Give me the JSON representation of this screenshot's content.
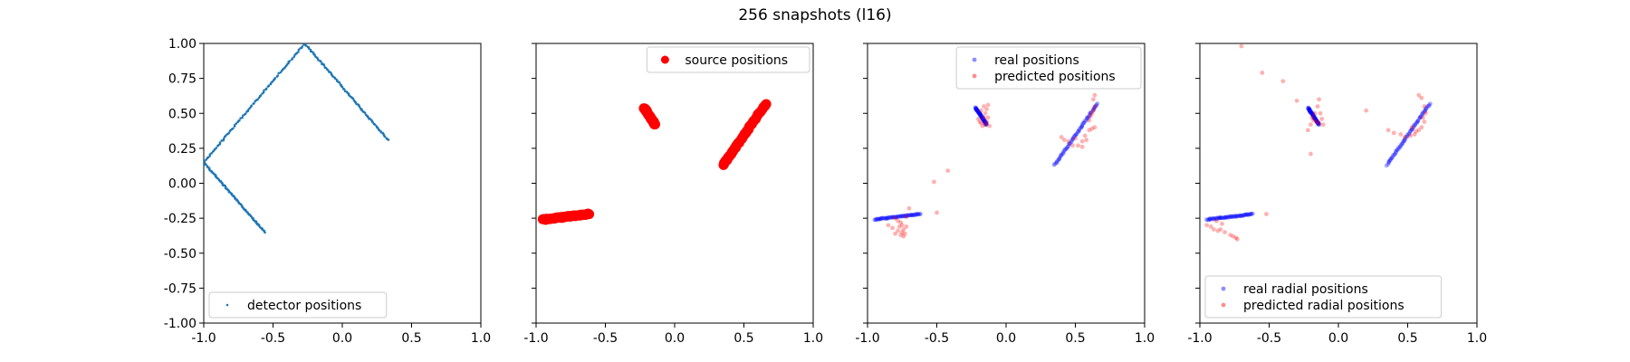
{
  "figure": {
    "title": "256 snapshots (l16)"
  },
  "colors": {
    "detector": "#1f77b4",
    "red": "#ff0000",
    "blue": "#0000ff",
    "axis": "#000000",
    "legend_border": "#cccccc"
  },
  "chart_data": [
    {
      "type": "scatter",
      "title": "",
      "xlabel": "",
      "ylabel": "",
      "xlim": [
        -1.0,
        1.0
      ],
      "ylim": [
        -1.0,
        1.0
      ],
      "xticks": [
        "-1.0",
        "-0.5",
        "0.0",
        "0.5",
        "1.0"
      ],
      "yticks": [
        "1.00",
        "0.75",
        "0.50",
        "0.25",
        "0.00",
        "-0.25",
        "-0.50",
        "-0.75",
        "-1.00"
      ],
      "legend_position": "lower-left",
      "grid": false,
      "series": [
        {
          "name": "detector positions",
          "style": "small-dot",
          "color": "#1f77b4",
          "segments": [
            {
              "from": [
                -0.56,
                -0.35
              ],
              "to": [
                -1.0,
                0.15
              ]
            },
            {
              "from": [
                -1.0,
                0.15
              ],
              "to": [
                -0.27,
                1.0
              ]
            },
            {
              "from": [
                -0.27,
                1.0
              ],
              "to": [
                0.33,
                0.31
              ]
            }
          ]
        }
      ]
    },
    {
      "type": "scatter",
      "title": "",
      "xlabel": "",
      "ylabel": "",
      "xlim": [
        -1.0,
        1.0
      ],
      "ylim": [
        -1.0,
        1.0
      ],
      "xticks": [
        "-1.0",
        "-0.5",
        "0.0",
        "0.5",
        "1.0"
      ],
      "yticks": [],
      "legend_position": "upper-right",
      "grid": false,
      "series": [
        {
          "name": "source positions",
          "style": "large-dot",
          "color": "#ff0000",
          "segments": [
            {
              "from": [
                -0.95,
                -0.26
              ],
              "to": [
                -0.62,
                -0.22
              ]
            },
            {
              "from": [
                -0.22,
                0.54
              ],
              "to": [
                -0.14,
                0.42
              ]
            },
            {
              "from": [
                0.35,
                0.13
              ],
              "to": [
                0.66,
                0.57
              ]
            }
          ]
        }
      ]
    },
    {
      "type": "scatter",
      "title": "",
      "xlabel": "",
      "ylabel": "",
      "xlim": [
        -1.0,
        1.0
      ],
      "ylim": [
        -1.0,
        1.0
      ],
      "xticks": [
        "-1.0",
        "-0.5",
        "0.0",
        "0.5",
        "1.0"
      ],
      "yticks": [],
      "legend_position": "upper-right",
      "grid": false,
      "series": [
        {
          "name": "real positions",
          "style": "faint-dot",
          "color": "#0000ff",
          "segments": [
            {
              "from": [
                -0.95,
                -0.26
              ],
              "to": [
                -0.62,
                -0.22
              ]
            },
            {
              "from": [
                -0.22,
                0.54
              ],
              "to": [
                -0.14,
                0.42
              ]
            },
            {
              "from": [
                0.35,
                0.13
              ],
              "to": [
                0.66,
                0.57
              ]
            }
          ]
        },
        {
          "name": "predicted positions",
          "style": "faint-dot",
          "color": "#ff0000",
          "points": [
            [
              -0.8,
              -0.25
            ],
            [
              -0.78,
              -0.27
            ],
            [
              -0.76,
              -0.28
            ],
            [
              -0.75,
              -0.3
            ],
            [
              -0.74,
              -0.33
            ],
            [
              -0.75,
              -0.35
            ],
            [
              -0.73,
              -0.36
            ],
            [
              -0.74,
              -0.38
            ],
            [
              -0.76,
              -0.37
            ],
            [
              -0.8,
              -0.36
            ],
            [
              -0.85,
              -0.3
            ],
            [
              -0.82,
              -0.32
            ],
            [
              -0.78,
              -0.34
            ],
            [
              -0.72,
              -0.24
            ],
            [
              -0.7,
              -0.18
            ],
            [
              -0.5,
              -0.21
            ],
            [
              -0.52,
              0.01
            ],
            [
              -0.42,
              0.09
            ],
            [
              -0.72,
              -0.31
            ],
            [
              -0.77,
              -0.31
            ],
            [
              -0.2,
              0.46
            ],
            [
              -0.18,
              0.43
            ],
            [
              -0.17,
              0.41
            ],
            [
              -0.15,
              0.42
            ],
            [
              -0.14,
              0.44
            ],
            [
              -0.13,
              0.47
            ],
            [
              -0.15,
              0.5
            ],
            [
              -0.14,
              0.53
            ],
            [
              -0.13,
              0.56
            ],
            [
              -0.16,
              0.55
            ],
            [
              -0.19,
              0.44
            ],
            [
              -0.12,
              0.41
            ],
            [
              -0.16,
              0.47
            ],
            [
              -0.18,
              0.52
            ],
            [
              0.4,
              0.33
            ],
            [
              0.42,
              0.31
            ],
            [
              0.48,
              0.27
            ],
            [
              0.52,
              0.27
            ],
            [
              0.55,
              0.3
            ],
            [
              0.57,
              0.34
            ],
            [
              0.6,
              0.38
            ],
            [
              0.62,
              0.39
            ],
            [
              0.64,
              0.4
            ],
            [
              0.6,
              0.45
            ],
            [
              0.62,
              0.5
            ],
            [
              0.64,
              0.55
            ],
            [
              0.63,
              0.6
            ],
            [
              0.64,
              0.63
            ],
            [
              0.55,
              0.26
            ],
            [
              0.58,
              0.31
            ],
            [
              0.5,
              0.32
            ],
            [
              0.45,
              0.3
            ],
            [
              0.61,
              0.48
            ],
            [
              0.63,
              0.52
            ]
          ]
        }
      ]
    },
    {
      "type": "scatter",
      "title": "",
      "xlabel": "",
      "ylabel": "",
      "xlim": [
        -1.0,
        1.0
      ],
      "ylim": [
        -1.0,
        1.0
      ],
      "xticks": [
        "-1.0",
        "-0.5",
        "0.0",
        "0.5",
        "1.0"
      ],
      "yticks": [],
      "legend_position": "lower-left",
      "grid": false,
      "series": [
        {
          "name": "real radial positions",
          "style": "faint-dot",
          "color": "#0000ff",
          "segments": [
            {
              "from": [
                -0.95,
                -0.26
              ],
              "to": [
                -0.62,
                -0.22
              ]
            },
            {
              "from": [
                -0.22,
                0.54
              ],
              "to": [
                -0.14,
                0.42
              ]
            },
            {
              "from": [
                0.35,
                0.13
              ],
              "to": [
                0.66,
                0.57
              ]
            }
          ]
        },
        {
          "name": "predicted radial positions",
          "style": "faint-dot",
          "color": "#ff0000",
          "points": [
            [
              -0.7,
              0.98
            ],
            [
              -0.55,
              0.79
            ],
            [
              -0.4,
              0.73
            ],
            [
              -0.3,
              0.59
            ],
            [
              -0.52,
              -0.22
            ],
            [
              0.2,
              0.52
            ],
            [
              -0.95,
              -0.3
            ],
            [
              -0.92,
              -0.31
            ],
            [
              -0.9,
              -0.33
            ],
            [
              -0.87,
              -0.34
            ],
            [
              -0.85,
              -0.33
            ],
            [
              -0.82,
              -0.35
            ],
            [
              -0.78,
              -0.37
            ],
            [
              -0.76,
              -0.38
            ],
            [
              -0.74,
              -0.39
            ],
            [
              -0.73,
              -0.4
            ],
            [
              -0.88,
              -0.27
            ],
            [
              -0.84,
              -0.29
            ],
            [
              -0.22,
              0.38
            ],
            [
              -0.2,
              0.42
            ],
            [
              -0.18,
              0.45
            ],
            [
              -0.16,
              0.44
            ],
            [
              -0.14,
              0.43
            ],
            [
              -0.12,
              0.46
            ],
            [
              -0.13,
              0.5
            ],
            [
              -0.15,
              0.55
            ],
            [
              -0.14,
              0.6
            ],
            [
              -0.17,
              0.5
            ],
            [
              -0.19,
              0.47
            ],
            [
              -0.2,
              0.21
            ],
            [
              -0.11,
              0.42
            ],
            [
              0.36,
              0.38
            ],
            [
              0.4,
              0.36
            ],
            [
              0.45,
              0.35
            ],
            [
              0.48,
              0.33
            ],
            [
              0.52,
              0.34
            ],
            [
              0.55,
              0.35
            ],
            [
              0.58,
              0.38
            ],
            [
              0.6,
              0.4
            ],
            [
              0.62,
              0.44
            ],
            [
              0.63,
              0.5
            ],
            [
              0.62,
              0.55
            ],
            [
              0.6,
              0.61
            ],
            [
              0.58,
              0.63
            ],
            [
              0.56,
              0.37
            ],
            [
              0.53,
              0.4
            ],
            [
              0.61,
              0.47
            ]
          ]
        }
      ]
    }
  ]
}
